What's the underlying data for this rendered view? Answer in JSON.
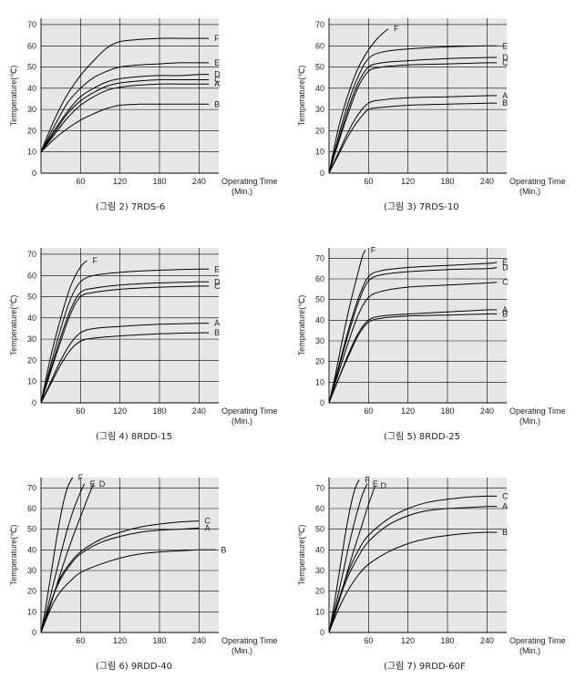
{
  "common": {
    "ylabel": "Temperature(℃)",
    "xlabel_line1": "Operating Time",
    "xlabel_line2": "(Min.)",
    "x_ticks": [
      60,
      120,
      180,
      240
    ],
    "y_ticks": [
      0,
      10,
      20,
      30,
      40,
      50,
      60,
      70
    ],
    "plot_bg": "#e6e6e6",
    "grid_color": "#000000",
    "line_color": "#000000"
  },
  "chart_data": [
    {
      "type": "line",
      "caption": "(그림 2) 7RDS-6",
      "xlim": [
        0,
        270
      ],
      "ylim": [
        0,
        73
      ],
      "series": [
        {
          "name": "F",
          "x": [
            0,
            20,
            40,
            60,
            80,
            100,
            120,
            150,
            180,
            210,
            240,
            255
          ],
          "y": [
            10,
            25,
            37,
            46,
            53,
            59,
            62,
            63,
            63.5,
            63.5,
            63.5,
            63.5
          ]
        },
        {
          "name": "E",
          "x": [
            0,
            20,
            40,
            60,
            80,
            100,
            120,
            150,
            180,
            210,
            240,
            255
          ],
          "y": [
            10,
            22,
            33,
            40,
            45,
            48,
            50,
            51,
            51.5,
            52,
            52,
            52
          ]
        },
        {
          "name": "D",
          "x": [
            0,
            20,
            40,
            60,
            80,
            100,
            120,
            150,
            180,
            210,
            240,
            255
          ],
          "y": [
            10,
            20,
            29,
            36,
            40,
            43,
            44.5,
            45.5,
            46,
            46,
            46.5,
            46.5
          ]
        },
        {
          "name": "C",
          "x": [
            0,
            20,
            40,
            60,
            80,
            100,
            120,
            150,
            180,
            210,
            240,
            255
          ],
          "y": [
            10,
            19,
            28,
            34,
            38,
            41,
            42.5,
            43.5,
            44,
            44,
            44,
            44
          ]
        },
        {
          "name": "A",
          "x": [
            0,
            20,
            40,
            60,
            80,
            100,
            120,
            150,
            180,
            210,
            240,
            255
          ],
          "y": [
            10,
            18,
            26,
            32,
            36,
            39,
            40.5,
            41.5,
            42,
            42,
            42,
            42
          ]
        },
        {
          "name": "B",
          "x": [
            0,
            20,
            40,
            60,
            80,
            100,
            120,
            150,
            180,
            210,
            240,
            255
          ],
          "y": [
            10,
            16,
            21,
            25,
            28,
            30.5,
            32,
            32.5,
            32.5,
            32.5,
            32.5,
            32.5
          ]
        }
      ]
    },
    {
      "type": "line",
      "caption": "(그림 3) 7RDS-10",
      "xlim": [
        0,
        270
      ],
      "ylim": [
        0,
        73
      ],
      "series": [
        {
          "name": "F",
          "x": [
            0,
            15,
            30,
            45,
            60,
            75,
            90
          ],
          "y": [
            0,
            22,
            38,
            50,
            58,
            64,
            68
          ]
        },
        {
          "name": "E",
          "x": [
            0,
            15,
            30,
            45,
            60,
            80,
            120,
            180,
            240,
            255
          ],
          "y": [
            0,
            18,
            34,
            46,
            54,
            57,
            58.5,
            59.5,
            60,
            60
          ]
        },
        {
          "name": "D",
          "x": [
            0,
            15,
            30,
            45,
            60,
            80,
            120,
            180,
            240,
            255
          ],
          "y": [
            0,
            16,
            31,
            43,
            50,
            52,
            53,
            54,
            54.5,
            54.5
          ]
        },
        {
          "name": "C",
          "x": [
            0,
            15,
            30,
            45,
            60,
            80,
            120,
            180,
            240,
            255
          ],
          "y": [
            0,
            15,
            29,
            41,
            48,
            50,
            51,
            51.5,
            52,
            52
          ]
        },
        {
          "name": "A",
          "x": [
            0,
            15,
            30,
            45,
            60,
            80,
            120,
            180,
            240,
            255
          ],
          "y": [
            0,
            10,
            20,
            28,
            33,
            34.5,
            35.5,
            36,
            36.5,
            36.5
          ]
        },
        {
          "name": "B",
          "x": [
            0,
            15,
            30,
            45,
            60,
            80,
            120,
            180,
            240,
            255
          ],
          "y": [
            0,
            9,
            18,
            25,
            30,
            31,
            32,
            32.5,
            33,
            33
          ]
        }
      ]
    },
    {
      "type": "line",
      "caption": "(그림 4) 8RDD-15",
      "xlim": [
        0,
        270
      ],
      "ylim": [
        0,
        73
      ],
      "series": [
        {
          "name": "F",
          "x": [
            0,
            15,
            30,
            45,
            60,
            70
          ],
          "y": [
            0,
            22,
            40,
            55,
            64,
            67
          ]
        },
        {
          "name": "E",
          "x": [
            0,
            15,
            30,
            45,
            60,
            80,
            120,
            180,
            240,
            255
          ],
          "y": [
            0,
            18,
            35,
            49,
            57,
            60,
            61.5,
            62.5,
            63,
            63
          ]
        },
        {
          "name": "D",
          "x": [
            0,
            15,
            30,
            45,
            60,
            80,
            120,
            180,
            240,
            255
          ],
          "y": [
            0,
            16,
            31,
            44,
            52,
            54,
            55.5,
            56.5,
            57,
            57
          ]
        },
        {
          "name": "C",
          "x": [
            0,
            15,
            30,
            45,
            60,
            80,
            120,
            180,
            240,
            255
          ],
          "y": [
            0,
            15,
            29,
            42,
            50,
            52,
            53.5,
            54.5,
            55,
            55
          ]
        },
        {
          "name": "A",
          "x": [
            0,
            15,
            30,
            45,
            60,
            80,
            120,
            180,
            240,
            255
          ],
          "y": [
            0,
            10,
            20,
            28,
            33,
            35,
            36,
            37,
            37.5,
            37.5
          ]
        },
        {
          "name": "B",
          "x": [
            0,
            15,
            30,
            45,
            60,
            80,
            120,
            180,
            240,
            255
          ],
          "y": [
            0,
            9,
            18,
            25,
            29,
            30.5,
            31.5,
            32.5,
            33,
            33
          ]
        }
      ]
    },
    {
      "type": "line",
      "caption": "(그림 5) 8RDD-25",
      "xlim": [
        0,
        270
      ],
      "ylim": [
        0,
        75
      ],
      "series": [
        {
          "name": "F",
          "x": [
            0,
            10,
            20,
            30,
            40,
            50,
            55
          ],
          "y": [
            0,
            14,
            30,
            45,
            58,
            70,
            74
          ]
        },
        {
          "name": "E",
          "x": [
            0,
            15,
            30,
            45,
            60,
            80,
            120,
            180,
            240,
            255
          ],
          "y": [
            0,
            18,
            36,
            51,
            61,
            64,
            65.5,
            66.5,
            67.5,
            68
          ]
        },
        {
          "name": "D",
          "x": [
            0,
            15,
            30,
            45,
            60,
            80,
            120,
            180,
            240,
            255
          ],
          "y": [
            0,
            17,
            34,
            49,
            59,
            62,
            63.5,
            64.5,
            65,
            65.5
          ]
        },
        {
          "name": "C",
          "x": [
            0,
            15,
            30,
            45,
            60,
            80,
            120,
            180,
            240,
            255
          ],
          "y": [
            0,
            15,
            30,
            43,
            51,
            54,
            56,
            57,
            58,
            58.5
          ]
        },
        {
          "name": "A",
          "x": [
            0,
            15,
            30,
            45,
            60,
            80,
            120,
            180,
            240,
            255
          ],
          "y": [
            0,
            12,
            24,
            34,
            40,
            42,
            43,
            44,
            45,
            45
          ]
        },
        {
          "name": "B",
          "x": [
            0,
            15,
            30,
            45,
            60,
            80,
            120,
            180,
            240,
            255
          ],
          "y": [
            0,
            12,
            23,
            33,
            39,
            41,
            42,
            42.5,
            43,
            43
          ]
        }
      ]
    },
    {
      "type": "line",
      "caption": "(그림 6) 9RDD-40",
      "xlim": [
        0,
        270
      ],
      "ylim": [
        0,
        75
      ],
      "series": [
        {
          "name": "F",
          "x": [
            0,
            8,
            16,
            24,
            32,
            40,
            48
          ],
          "y": [
            0,
            14,
            30,
            46,
            60,
            70,
            75
          ]
        },
        {
          "name": "E",
          "x": [
            0,
            10,
            20,
            30,
            40,
            50,
            60,
            66
          ],
          "y": [
            0,
            12,
            25,
            38,
            50,
            60,
            68,
            72
          ]
        },
        {
          "name": "D",
          "x": [
            0,
            12,
            24,
            36,
            48,
            60,
            72,
            80
          ],
          "y": [
            0,
            11,
            23,
            35,
            46,
            56,
            66,
            72
          ]
        },
        {
          "name": "C",
          "x": [
            0,
            10,
            20,
            30,
            45,
            60,
            90,
            120,
            150,
            180,
            210,
            240
          ],
          "y": [
            0,
            10,
            19,
            27,
            34,
            39,
            45,
            48.5,
            51,
            52.5,
            53.5,
            54
          ]
        },
        {
          "name": "A",
          "x": [
            0,
            10,
            20,
            30,
            45,
            60,
            90,
            120,
            150,
            180,
            210,
            240
          ],
          "y": [
            0,
            10,
            19,
            26,
            33,
            38,
            43.5,
            46.5,
            48.5,
            49.5,
            50,
            50.5
          ]
        },
        {
          "name": "B",
          "x": [
            0,
            10,
            20,
            30,
            45,
            60,
            90,
            120,
            150,
            180,
            210,
            240,
            265
          ],
          "y": [
            0,
            8,
            15,
            20,
            25,
            29,
            33,
            36,
            38,
            39,
            39.5,
            40,
            40
          ]
        }
      ]
    },
    {
      "type": "line",
      "caption": "(그림 7) 9RDD-60F",
      "xlim": [
        0,
        270
      ],
      "ylim": [
        0,
        75
      ],
      "series": [
        {
          "name": "F",
          "x": [
            0,
            8,
            16,
            24,
            32,
            40,
            46
          ],
          "y": [
            0,
            14,
            30,
            46,
            60,
            70,
            74
          ]
        },
        {
          "name": "E",
          "x": [
            0,
            10,
            20,
            30,
            40,
            50,
            58
          ],
          "y": [
            0,
            13,
            27,
            42,
            55,
            66,
            72
          ]
        },
        {
          "name": "D",
          "x": [
            0,
            12,
            24,
            36,
            48,
            60,
            70
          ],
          "y": [
            0,
            12,
            25,
            38,
            50,
            62,
            71
          ]
        },
        {
          "name": "C",
          "x": [
            0,
            10,
            20,
            30,
            45,
            60,
            90,
            120,
            150,
            180,
            210,
            240,
            255
          ],
          "y": [
            0,
            11,
            21,
            30,
            40,
            47,
            55,
            60,
            63,
            64.5,
            65.5,
            66,
            66
          ]
        },
        {
          "name": "A",
          "x": [
            0,
            10,
            20,
            30,
            45,
            60,
            90,
            120,
            150,
            180,
            210,
            240,
            255
          ],
          "y": [
            0,
            10,
            20,
            28,
            37,
            44,
            52,
            56.5,
            59,
            60,
            60.5,
            61,
            61
          ]
        },
        {
          "name": "B",
          "x": [
            0,
            10,
            20,
            30,
            45,
            60,
            90,
            120,
            150,
            180,
            210,
            240,
            255
          ],
          "y": [
            0,
            8,
            15,
            21,
            28,
            33,
            39,
            43,
            45.5,
            47,
            48,
            48.5,
            48.5
          ]
        }
      ]
    }
  ]
}
